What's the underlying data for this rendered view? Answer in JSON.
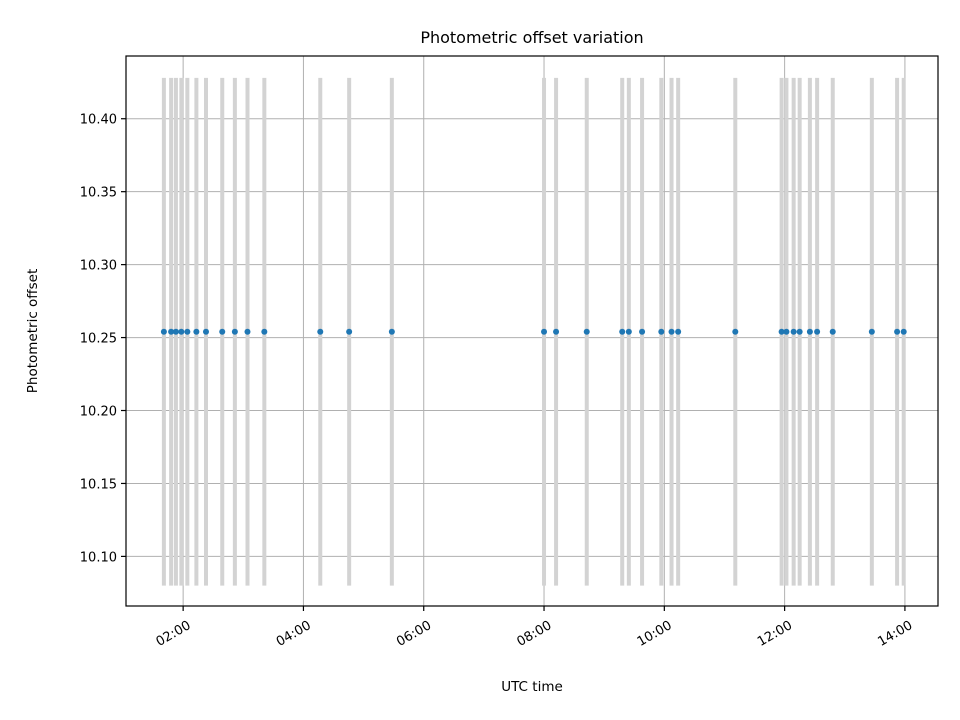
{
  "chart_data": {
    "type": "scatter",
    "title": "Photometric offset variation",
    "xlabel": "UTC time",
    "ylabel": "Photometric offset",
    "x_tick_labels": [
      "02:00",
      "04:00",
      "06:00",
      "08:00",
      "10:00",
      "12:00",
      "14:00"
    ],
    "x_ticks_hours": [
      2,
      4,
      6,
      8,
      10,
      12,
      14
    ],
    "y_ticks": [
      10.1,
      10.15,
      10.2,
      10.25,
      10.3,
      10.35,
      10.4
    ],
    "xlim_hours": [
      1.05,
      14.55
    ],
    "ylim": [
      10.066,
      10.443
    ],
    "grid": true,
    "errorbar_range": [
      10.08,
      10.428
    ],
    "series": [
      {
        "color": "#1f77b4",
        "error_color": "#d3d3d3",
        "x_hours": [
          1.68,
          1.8,
          1.88,
          1.97,
          2.07,
          2.22,
          2.38,
          2.65,
          2.86,
          3.07,
          3.35,
          4.28,
          4.76,
          5.47,
          8.0,
          8.2,
          8.71,
          9.3,
          9.41,
          9.63,
          9.95,
          10.12,
          10.23,
          11.18,
          11.95,
          12.03,
          12.15,
          12.25,
          12.42,
          12.54,
          12.8,
          13.45,
          13.87,
          13.98
        ],
        "y": [
          10.254,
          10.254,
          10.254,
          10.254,
          10.254,
          10.254,
          10.254,
          10.254,
          10.254,
          10.254,
          10.254,
          10.254,
          10.254,
          10.254,
          10.254,
          10.254,
          10.254,
          10.254,
          10.254,
          10.254,
          10.254,
          10.254,
          10.254,
          10.254,
          10.254,
          10.254,
          10.254,
          10.254,
          10.254,
          10.254,
          10.254,
          10.254,
          10.254,
          10.254
        ]
      }
    ]
  }
}
